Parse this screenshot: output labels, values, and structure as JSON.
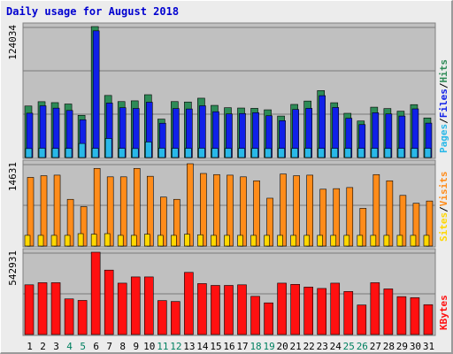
{
  "chart_data": {
    "type": "bar",
    "title": "Daily usage for August 2018",
    "days": [
      "1",
      "2",
      "3",
      "4",
      "5",
      "6",
      "7",
      "8",
      "9",
      "10",
      "11",
      "12",
      "13",
      "14",
      "15",
      "16",
      "17",
      "18",
      "19",
      "20",
      "21",
      "22",
      "23",
      "24",
      "25",
      "26",
      "27",
      "28",
      "29",
      "30",
      "31"
    ],
    "weekend_days": [
      "4",
      "5",
      "11",
      "12",
      "18",
      "19",
      "25",
      "26"
    ],
    "panels": [
      {
        "name": "hits-files-pages",
        "max_label": "124034",
        "ymax": 124034,
        "right_label": [
          "Pages",
          "Files",
          "Hits"
        ],
        "series": [
          {
            "name": "Hits",
            "color": "#2e8b57",
            "values": [
              48800,
              52900,
              52000,
              50700,
              40000,
              124034,
              58800,
              53000,
              53700,
              59500,
              36400,
              53000,
              52600,
              56200,
              49400,
              47200,
              46900,
              46600,
              45200,
              39300,
              50300,
              53500,
              63400,
              51900,
              41900,
              34600,
              47700,
              46400,
              43900,
              50100,
              37500
            ]
          },
          {
            "name": "Files",
            "color": "#1020e8",
            "values": [
              42000,
              49000,
              46800,
              44600,
              35800,
              120000,
              51600,
              47200,
              46500,
              52400,
              32500,
              46400,
              46000,
              49000,
              43400,
              41300,
              41700,
              42500,
              39600,
              34900,
              45500,
              46600,
              58600,
              47400,
              37200,
              31200,
              42400,
              41300,
              39300,
              46100,
              32600
            ]
          },
          {
            "name": "Pages",
            "color": "#29b8e8",
            "values": [
              8500,
              8800,
              8600,
              8600,
              13300,
              8700,
              18000,
              8700,
              8500,
              14700,
              8800,
              8700,
              8700,
              8800,
              8600,
              8600,
              8600,
              8600,
              8500,
              8600,
              8600,
              8700,
              8600,
              8700,
              8600,
              8700,
              8700,
              8600,
              8700,
              8600,
              8700
            ]
          }
        ]
      },
      {
        "name": "visits-sites",
        "max_label": "14631",
        "ymax": 14631,
        "right_label": [
          "Sites",
          "Visits"
        ],
        "series": [
          {
            "name": "Visits",
            "color": "#ff8c1a",
            "values": [
              12200,
              12500,
              12600,
              8300,
              7000,
              13800,
              12300,
              12300,
              13800,
              12400,
              8700,
              8300,
              14631,
              12900,
              12700,
              12600,
              12300,
              11600,
              8500,
              12800,
              12500,
              12600,
              10100,
              10200,
              10400,
              6700,
              12700,
              11600,
              9000,
              7600,
              8000
            ]
          },
          {
            "name": "Sites",
            "color": "#ffd700",
            "values": [
              1900,
              1900,
              1900,
              1900,
              2200,
              2100,
              2200,
              1900,
              1900,
              2100,
              1900,
              1900,
              2100,
              2000,
              1900,
              1900,
              1900,
              1900,
              1900,
              1900,
              1900,
              1900,
              1900,
              1900,
              1900,
              1900,
              1900,
              1900,
              1900,
              1900,
              1900
            ]
          }
        ]
      },
      {
        "name": "kbytes",
        "max_label": "542931",
        "ymax": 542931,
        "right_label": [
          "KBytes"
        ],
        "series": [
          {
            "name": "KBytes",
            "color": "#ff1010",
            "values": [
              328000,
              342000,
              342000,
              235000,
              225000,
              542931,
              425000,
              339000,
              380000,
              380000,
              224000,
              218000,
              410000,
              336000,
              324000,
              324000,
              328000,
              252000,
              209000,
              339000,
              331000,
              313000,
              304000,
              339000,
              284000,
              195000,
              342000,
              301000,
              250000,
              243000,
              197000
            ]
          }
        ]
      }
    ]
  }
}
